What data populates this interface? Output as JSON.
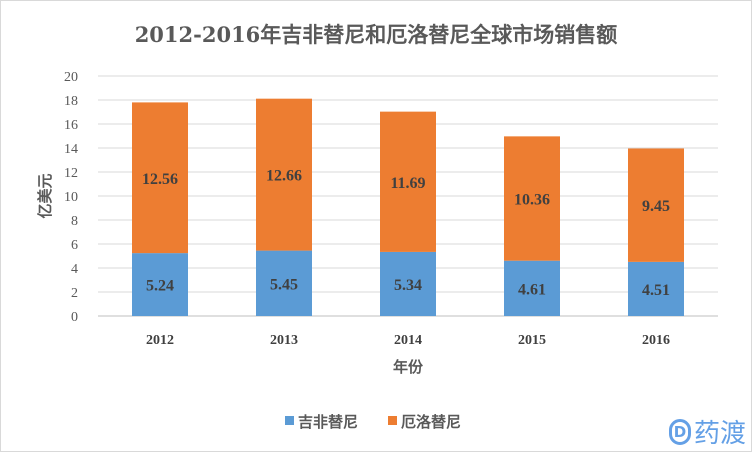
{
  "chart_data": {
    "type": "bar",
    "stacked": true,
    "title": "2012-2016年吉非替尼和厄洛替尼全球市场销售额",
    "xlabel": "年份",
    "ylabel": "亿美元",
    "ylim": [
      0,
      20
    ],
    "yticks": [
      0,
      2,
      4,
      6,
      8,
      10,
      12,
      14,
      16,
      18,
      20
    ],
    "grid": true,
    "legend_position": "bottom",
    "categories": [
      "2012",
      "2013",
      "2014",
      "2015",
      "2016"
    ],
    "series": [
      {
        "name": "吉非替尼",
        "color": "#5b9bd5",
        "values": [
          5.24,
          5.45,
          5.34,
          4.61,
          4.51
        ]
      },
      {
        "name": "厄洛替尼",
        "color": "#ed7d31",
        "values": [
          12.56,
          12.66,
          11.69,
          10.36,
          9.45
        ]
      }
    ]
  },
  "watermark": {
    "logo_text": "药渡"
  }
}
